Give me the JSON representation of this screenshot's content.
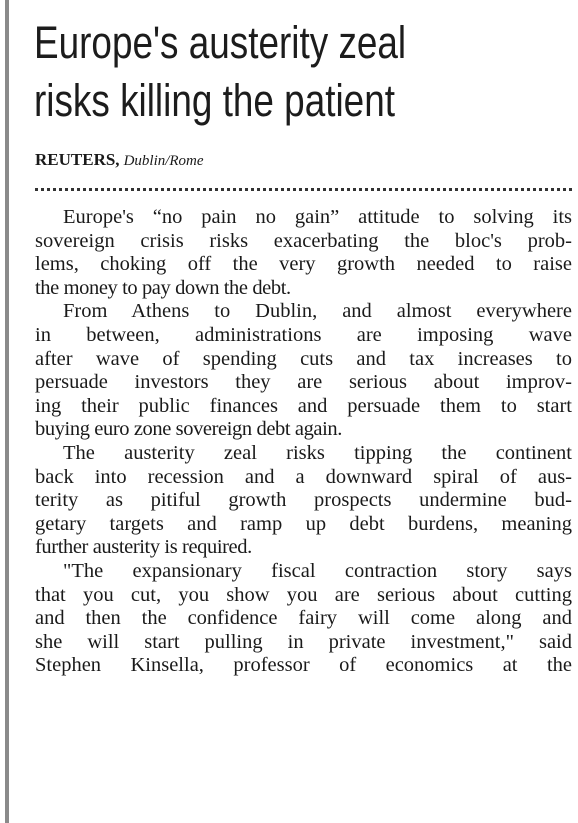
{
  "headline": [
    "Europe's austerity zeal",
    "risks killing the patient"
  ],
  "byline": {
    "source": "REUTERS,",
    "location": "Dublin/Rome"
  },
  "paragraphs": [
    [
      "Europe's “no pain no gain” attitude to solving its",
      "sovereign crisis risks exacerbating the bloc's prob-",
      "lems, choking off the very growth needed to raise",
      "the money to pay down the debt."
    ],
    [
      "From Athens to Dublin, and almost everywhere",
      "in between, administrations are imposing wave",
      "after wave of spending cuts and tax increases to",
      "persuade investors they are serious about improv-",
      "ing their public finances and persuade them to start",
      "buying euro zone sovereign debt again."
    ],
    [
      "The austerity zeal risks tipping the continent",
      "back into recession and a downward spiral of aus-",
      "terity as pitiful growth prospects undermine bud-",
      "getary targets and ramp up debt burdens, meaning",
      "further austerity is required."
    ],
    [
      "\"The expansionary fiscal contraction story says",
      "that you cut, you show you are serious about cutting",
      "and then the confidence fairy will come along and",
      "she will start pulling in private investment,\" said",
      "Stephen Kinsella, professor of economics at the"
    ]
  ]
}
